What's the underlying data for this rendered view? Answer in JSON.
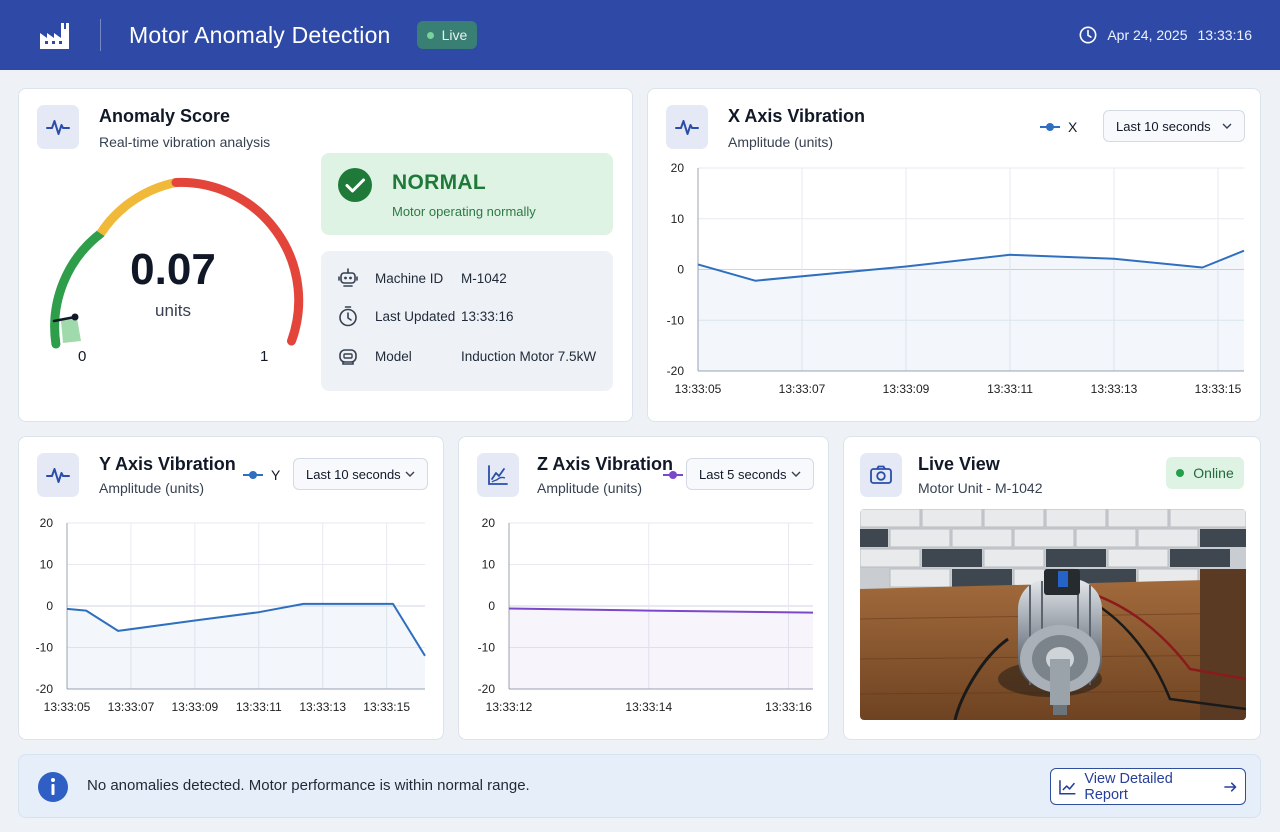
{
  "header": {
    "title": "Motor Anomaly Detection",
    "live_label": "Live",
    "date": "Apr 24, 2025",
    "time": "13:33:16"
  },
  "anomaly": {
    "title": "Anomaly Score",
    "subtitle": "Real-time vibration analysis",
    "value": "0.07",
    "unit": "units",
    "min_label": "0",
    "max_label": "1",
    "score": 0.07,
    "status": "NORMAL",
    "status_text": "Motor operating normally",
    "info": [
      {
        "label": "Machine ID",
        "value": "M-1042",
        "icon": "robot-icon"
      },
      {
        "label": "Last Updated",
        "value": "13:33:16",
        "icon": "stopwatch-icon"
      },
      {
        "label": "Model",
        "value": "Induction Motor 7.5kW",
        "icon": "motor-icon"
      }
    ],
    "colors": {
      "green": "#2e9e4b",
      "yellow": "#f0b93a",
      "red": "#e4453a"
    }
  },
  "x_chart": {
    "title": "X Axis Vibration",
    "subtitle": "Amplitude (units)",
    "legend": "X",
    "range": "Last 10 seconds",
    "color": "#2f6fbf"
  },
  "y_chart": {
    "title": "Y Axis Vibration",
    "subtitle": "Amplitude (units)",
    "legend": "Y",
    "range": "Last 10 seconds",
    "color": "#2f6fbf"
  },
  "z_chart": {
    "title": "Z Axis Vibration",
    "subtitle": "Amplitude (units)",
    "range": "Last 5 seconds",
    "color": "#7a49c9"
  },
  "live_view": {
    "title": "Live View",
    "subtitle": "Motor Unit - M-1042",
    "status": "Online"
  },
  "banner": {
    "message": "No anomalies detected. Motor performance is within normal range.",
    "button": "View Detailed Report"
  },
  "chart_data": [
    {
      "type": "line",
      "ylim": [
        -20,
        20
      ],
      "yticks": [
        "20",
        "10",
        "0",
        "-10",
        "-20"
      ],
      "xticks": [
        "13:33:05",
        "13:33:07",
        "13:33:09",
        "13:33:11",
        "13:33:13",
        "13:33:15"
      ],
      "series": [
        {
          "name": "X",
          "x": [
            5,
            6.1,
            9,
            11,
            13,
            14.7,
            15.5
          ],
          "y": [
            1,
            -2.2,
            0.6,
            2.9,
            2.1,
            0.4,
            3.7
          ]
        }
      ]
    },
    {
      "type": "line",
      "ylim": [
        -20,
        20
      ],
      "yticks": [
        "20",
        "10",
        "0",
        "-10",
        "-20"
      ],
      "xticks": [
        "13:33:05",
        "13:33:07",
        "13:33:09",
        "13:33:11",
        "13:33:13",
        "13:33:15"
      ],
      "series": [
        {
          "name": "Y",
          "x": [
            5,
            5.6,
            6.6,
            9,
            11,
            12.4,
            14.1,
            15.2,
            16.2
          ],
          "y": [
            -0.7,
            -1.1,
            -6,
            -3.5,
            -1.5,
            0.5,
            0.5,
            0.5,
            -12
          ]
        }
      ]
    },
    {
      "type": "line",
      "ylim": [
        -20,
        20
      ],
      "yticks": [
        "20",
        "10",
        "0",
        "-10",
        "-20"
      ],
      "xticks": [
        "13:33:12",
        "13:33:14",
        "13:33:16"
      ],
      "series": [
        {
          "x": [
            12,
            14,
            16.35
          ],
          "y": [
            -0.6,
            -1.1,
            -1.6
          ]
        }
      ]
    }
  ]
}
